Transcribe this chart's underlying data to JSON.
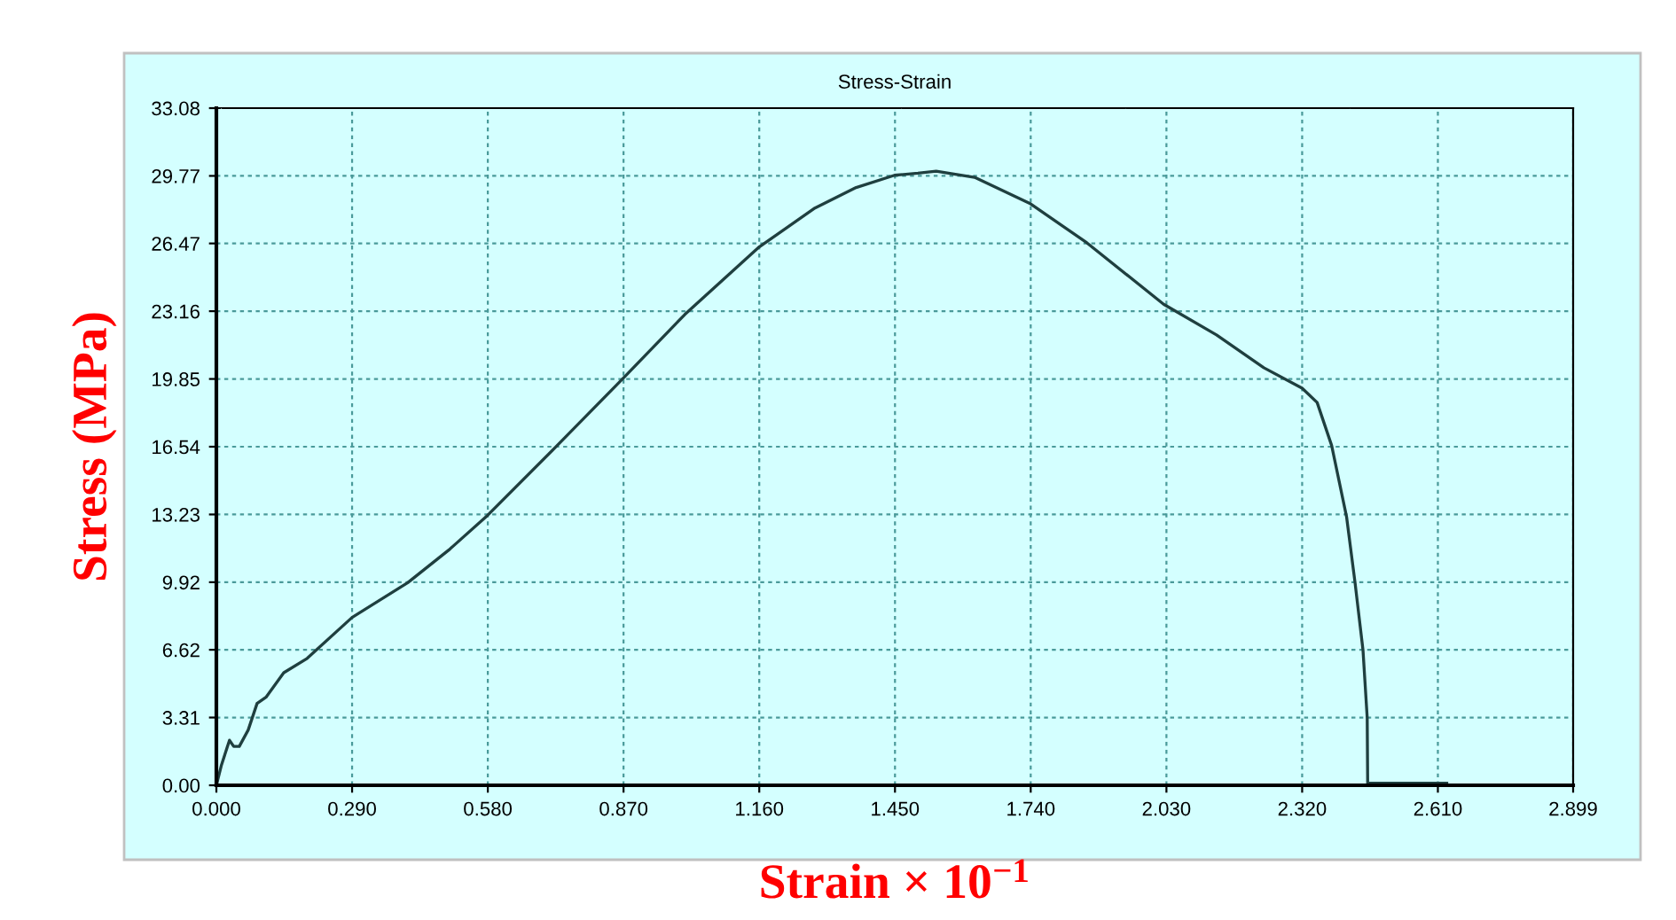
{
  "chart_data": {
    "type": "line",
    "title": "Stress-Strain",
    "xlabel": "Strain × 10$^{−1}$",
    "ylabel": "Stress (MPa)",
    "series": [
      {
        "color": "#1f3f3f",
        "x": [
          0,
          0.011,
          0.028,
          0.037,
          0.049,
          0.068,
          0.087,
          0.106,
          0.144,
          0.194,
          0.29,
          0.409,
          0.497,
          0.58,
          0.724,
          0.87,
          1.001,
          1.16,
          1.279,
          1.367,
          1.449,
          1.499,
          1.538,
          1.62,
          1.74,
          1.86,
          2.024,
          2.137,
          2.238,
          2.32,
          2.352,
          2.383,
          2.415,
          2.433,
          2.45,
          2.459,
          2.46,
          2.629
        ],
        "values": [
          0,
          1.0,
          2.2,
          1.9,
          1.9,
          2.7,
          4.0,
          4.3,
          5.5,
          6.2,
          8.2,
          9.9,
          11.5,
          13.2,
          16.5,
          19.9,
          23.0,
          26.3,
          28.2,
          29.2,
          29.8,
          29.9,
          30.0,
          29.7,
          28.4,
          26.5,
          23.5,
          22.0,
          20.4,
          19.4,
          18.7,
          16.6,
          13.1,
          9.9,
          6.6,
          3.3,
          0.1,
          0.1
        ]
      }
    ],
    "xlim": [
      0,
      2.899
    ],
    "ylim": [
      0,
      33.08
    ],
    "xticks": [
      {
        "value": 0,
        "label": "0.000"
      },
      {
        "value": 0.29,
        "label": "0.290"
      },
      {
        "value": 0.58,
        "label": "0.580"
      },
      {
        "value": 0.87,
        "label": "0.870"
      },
      {
        "value": 1.16,
        "label": "1.160"
      },
      {
        "value": 1.45,
        "label": "1.450"
      },
      {
        "value": 1.74,
        "label": "1.740"
      },
      {
        "value": 2.03,
        "label": "2.030"
      },
      {
        "value": 2.32,
        "label": "2.320"
      },
      {
        "value": 2.61,
        "label": "2.610"
      },
      2.899
    ],
    "yticks": [
      {
        "value": 0,
        "label": "0.00"
      },
      3.31,
      6.62,
      9.92,
      13.23,
      16.54,
      19.85,
      23.16,
      26.47,
      29.77,
      33.08
    ],
    "grid": true,
    "marker": "none",
    "line_style": "solid"
  }
}
